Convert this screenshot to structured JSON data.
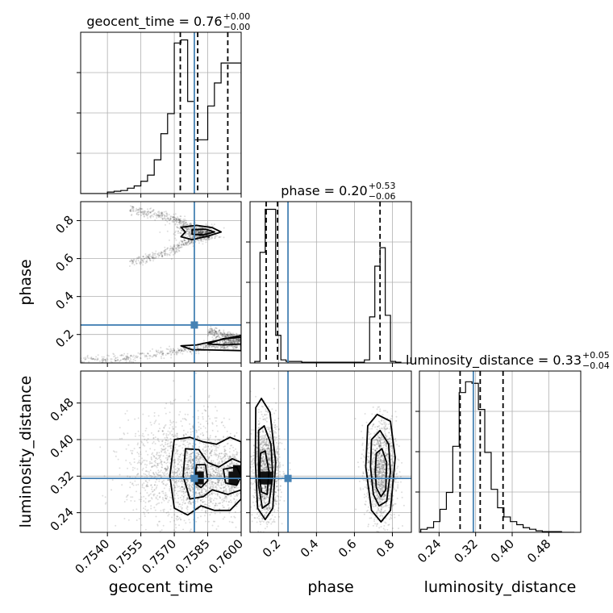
{
  "chart_data": {
    "type": "corner",
    "parameters": [
      "geocent_time",
      "phase",
      "luminosity_distance"
    ],
    "truth": {
      "geocent_time": 0.7579,
      "phase": 0.25,
      "luminosity_distance": 0.315
    },
    "colors": {
      "truth": "#4682b4",
      "lines": "#000000",
      "grid": "#b0b0b0"
    },
    "diagonal": [
      {
        "param": "geocent_time",
        "title_main": "geocent_time = 0.76",
        "title_sup": "+0.00",
        "title_sub": "−0.00",
        "range": [
          0.7528,
          0.76
        ],
        "quantiles": [
          0.75727,
          0.75805,
          0.7594
        ],
        "bin_edges": [
          0.7528,
          0.7531,
          0.7534,
          0.7537,
          0.754,
          0.7543,
          0.7546,
          0.7549,
          0.7552,
          0.7555,
          0.7558,
          0.7561,
          0.7564,
          0.7567,
          0.757,
          0.7573,
          0.7576,
          0.7579,
          0.7582,
          0.7585,
          0.7588,
          0.7591,
          0.7594,
          0.7597,
          0.76
        ],
        "counts": [
          0,
          0,
          0,
          0,
          0.01,
          0.015,
          0.02,
          0.035,
          0.05,
          0.08,
          0.12,
          0.22,
          0.39,
          0.52,
          0.98,
          1.0,
          0.6,
          0.35,
          0.35,
          0.57,
          0.72,
          0.85,
          0.85,
          0.85
        ]
      },
      {
        "param": "phase",
        "title_main": "phase = 0.20",
        "title_sup": "+0.53",
        "title_sub": "−0.06",
        "range": [
          0.05,
          0.9
        ],
        "quantiles": [
          0.135,
          0.195,
          0.735
        ],
        "bin_edges": [
          0.075,
          0.1025,
          0.13,
          0.1575,
          0.185,
          0.2125,
          0.24,
          0.2675,
          0.295,
          0.3225,
          0.35,
          0.3775,
          0.405,
          0.4325,
          0.46,
          0.4875,
          0.515,
          0.5425,
          0.57,
          0.5975,
          0.625,
          0.6525,
          0.68,
          0.7075,
          0.735,
          0.7625,
          0.79,
          0.8175,
          0.845
        ],
        "counts": [
          0.01,
          0.72,
          1.0,
          1.0,
          0.18,
          0.02,
          0.01,
          0.01,
          0.01,
          0.005,
          0.005,
          0.005,
          0.005,
          0.005,
          0.005,
          0.005,
          0.005,
          0.005,
          0.005,
          0.005,
          0.005,
          0.02,
          0.3,
          0.63,
          0.75,
          0.31,
          0.01,
          0.005
        ]
      },
      {
        "param": "luminosity_distance",
        "title_main": "luminosity_distance = 0.33",
        "title_sup": "+0.05",
        "title_sub": "−0.04",
        "range": [
          0.197,
          0.55
        ],
        "quantiles": [
          0.286,
          0.33,
          0.38
        ],
        "bin_edges": [
          0.2,
          0.214,
          0.228,
          0.242,
          0.256,
          0.27,
          0.284,
          0.298,
          0.312,
          0.326,
          0.34,
          0.354,
          0.368,
          0.382,
          0.396,
          0.41,
          0.424,
          0.438,
          0.452,
          0.466,
          0.48,
          0.494,
          0.508,
          0.522,
          0.536
        ],
        "counts": [
          0.02,
          0.03,
          0.07,
          0.15,
          0.26,
          0.56,
          0.91,
          0.98,
          0.97,
          0.8,
          0.52,
          0.28,
          0.16,
          0.1,
          0.07,
          0.05,
          0.03,
          0.02,
          0.01,
          0.005,
          0.005,
          0.005,
          0.0,
          0.0
        ]
      }
    ],
    "axes": {
      "geocent_time": {
        "range": [
          0.7528,
          0.76
        ],
        "ticks": [
          0.754,
          0.7555,
          0.757,
          0.7585,
          0.76
        ],
        "tick_labels": [
          "0.7540",
          "0.7555",
          "0.7570",
          "0.7585",
          "0.7600"
        ]
      },
      "phase": {
        "range": [
          0.05,
          0.9
        ],
        "ticks": [
          0.2,
          0.4,
          0.6,
          0.8
        ],
        "tick_labels": [
          "0.2",
          "0.4",
          "0.6",
          "0.8"
        ]
      },
      "luminosity_distance": {
        "range": [
          0.197,
          0.55
        ],
        "ticks": [
          0.24,
          0.32,
          0.4,
          0.48
        ],
        "tick_labels": [
          "0.24",
          "0.32",
          "0.40",
          "0.48"
        ]
      }
    },
    "xlabels": [
      "geocent_time",
      "phase",
      "luminosity_distance"
    ],
    "ylabels": [
      "",
      "phase",
      "luminosity_distance"
    ],
    "pairs": [
      {
        "x": "geocent_time",
        "y": "phase",
        "clusters": [
          {
            "type": "curve",
            "pts": [
              [
                0.755,
                0.855
              ],
              [
                0.7562,
                0.835
              ],
              [
                0.7572,
                0.8
              ],
              [
                0.758,
                0.74
              ],
              [
                0.7586,
                0.728
              ]
            ],
            "spread": 0.013,
            "n": 420
          },
          {
            "type": "curve",
            "pts": [
              [
                0.755,
                0.58
              ],
              [
                0.7562,
                0.615
              ],
              [
                0.7572,
                0.66
              ],
              [
                0.758,
                0.715
              ],
              [
                0.7586,
                0.722
              ]
            ],
            "spread": 0.012,
            "n": 380
          },
          {
            "type": "blob",
            "cx": 0.75805,
            "cy": 0.735,
            "sx": 0.00045,
            "sy": 0.022,
            "n": 350
          },
          {
            "type": "curve",
            "pts": [
              [
                0.7528,
                0.06
              ],
              [
                0.755,
                0.075
              ],
              [
                0.757,
                0.11
              ],
              [
                0.7585,
                0.135
              ],
              [
                0.76,
                0.15
              ]
            ],
            "spread": 0.012,
            "n": 480
          },
          {
            "type": "curve",
            "pts": [
              [
                0.7585,
                0.22
              ],
              [
                0.7592,
                0.2
              ],
              [
                0.76,
                0.175
              ]
            ],
            "spread": 0.012,
            "n": 180
          },
          {
            "type": "blob",
            "cx": 0.7596,
            "cy": 0.168,
            "sx": 0.00035,
            "sy": 0.018,
            "n": 320
          }
        ],
        "contours": [
          [
            [
              0.7573,
              0.765
            ],
            [
              0.758,
              0.775
            ],
            [
              0.7587,
              0.763
            ],
            [
              0.7591,
              0.74
            ],
            [
              0.7585,
              0.718
            ],
            [
              0.7578,
              0.7
            ],
            [
              0.7573,
              0.715
            ],
            [
              0.7575,
              0.74
            ]
          ],
          [
            [
              0.7578,
              0.752
            ],
            [
              0.7584,
              0.755
            ],
            [
              0.7588,
              0.74
            ],
            [
              0.7583,
              0.725
            ],
            [
              0.7578,
              0.728
            ]
          ],
          [
            [
              0.7573,
              0.14
            ],
            [
              0.758,
              0.145
            ],
            [
              0.7588,
              0.165
            ],
            [
              0.76,
              0.195
            ],
            [
              0.76,
              0.115
            ],
            [
              0.7588,
              0.118
            ],
            [
              0.7578,
              0.12
            ]
          ],
          [
            [
              0.7585,
              0.15
            ],
            [
              0.7592,
              0.178
            ],
            [
              0.76,
              0.185
            ],
            [
              0.76,
              0.15
            ],
            [
              0.7592,
              0.145
            ]
          ]
        ]
      },
      {
        "x": "geocent_time",
        "y": "luminosity_distance",
        "clusters": [
          {
            "type": "blob",
            "cx": 0.7575,
            "cy": 0.33,
            "sx": 0.0013,
            "sy": 0.06,
            "n": 1600
          },
          {
            "type": "blob",
            "cx": 0.7581,
            "cy": 0.32,
            "sx": 0.00045,
            "sy": 0.03,
            "n": 400
          },
          {
            "type": "blob",
            "cx": 0.7596,
            "cy": 0.32,
            "sx": 0.00035,
            "sy": 0.03,
            "n": 400
          }
        ],
        "contours": [
          [
            [
              0.757,
              0.4
            ],
            [
              0.7577,
              0.405
            ],
            [
              0.7583,
              0.395
            ],
            [
              0.7589,
              0.39
            ],
            [
              0.7595,
              0.405
            ],
            [
              0.76,
              0.395
            ],
            [
              0.76,
              0.27
            ],
            [
              0.7595,
              0.245
            ],
            [
              0.7588,
              0.245
            ],
            [
              0.7582,
              0.255
            ],
            [
              0.7576,
              0.235
            ],
            [
              0.757,
              0.25
            ],
            [
              0.7568,
              0.32
            ]
          ],
          [
            [
              0.7575,
              0.38
            ],
            [
              0.7581,
              0.378
            ],
            [
              0.7585,
              0.35
            ],
            [
              0.759,
              0.34
            ],
            [
              0.7596,
              0.358
            ],
            [
              0.76,
              0.35
            ],
            [
              0.76,
              0.29
            ],
            [
              0.7594,
              0.28
            ],
            [
              0.7587,
              0.29
            ],
            [
              0.7583,
              0.275
            ],
            [
              0.7577,
              0.27
            ],
            [
              0.7574,
              0.32
            ]
          ],
          [
            [
              0.758,
              0.345
            ],
            [
              0.7584,
              0.345
            ],
            [
              0.7585,
              0.31
            ],
            [
              0.7582,
              0.295
            ],
            [
              0.7579,
              0.305
            ]
          ],
          [
            [
              0.7592,
              0.335
            ],
            [
              0.7598,
              0.34
            ],
            [
              0.76,
              0.32
            ],
            [
              0.7598,
              0.3
            ],
            [
              0.7593,
              0.305
            ]
          ]
        ],
        "dark_cells": [
          [
            0.75811,
            0.316
          ],
          [
            0.75965,
            0.316
          ],
          [
            0.75985,
            0.33
          ]
        ]
      },
      {
        "x": "phase",
        "y": "luminosity_distance",
        "clusters": [
          {
            "type": "blob",
            "cx": 0.135,
            "cy": 0.33,
            "sx": 0.035,
            "sy": 0.055,
            "n": 1300
          },
          {
            "type": "blob",
            "cx": 0.74,
            "cy": 0.33,
            "sx": 0.04,
            "sy": 0.055,
            "n": 1300
          }
        ],
        "contours": [
          [
            [
              0.08,
              0.47
            ],
            [
              0.11,
              0.49
            ],
            [
              0.155,
              0.46
            ],
            [
              0.185,
              0.35
            ],
            [
              0.17,
              0.25
            ],
            [
              0.13,
              0.225
            ],
            [
              0.09,
              0.25
            ],
            [
              0.078,
              0.35
            ]
          ],
          [
            [
              0.095,
              0.42
            ],
            [
              0.125,
              0.43
            ],
            [
              0.16,
              0.39
            ],
            [
              0.17,
              0.32
            ],
            [
              0.15,
              0.26
            ],
            [
              0.115,
              0.25
            ],
            [
              0.095,
              0.3
            ]
          ],
          [
            [
              0.105,
              0.37
            ],
            [
              0.13,
              0.375
            ],
            [
              0.15,
              0.33
            ],
            [
              0.14,
              0.28
            ],
            [
              0.11,
              0.285
            ],
            [
              0.1,
              0.32
            ]
          ],
          [
            [
              0.67,
              0.43
            ],
            [
              0.72,
              0.455
            ],
            [
              0.79,
              0.44
            ],
            [
              0.815,
              0.36
            ],
            [
              0.79,
              0.245
            ],
            [
              0.74,
              0.22
            ],
            [
              0.69,
              0.245
            ],
            [
              0.66,
              0.34
            ]
          ],
          [
            [
              0.69,
              0.4
            ],
            [
              0.735,
              0.42
            ],
            [
              0.78,
              0.39
            ],
            [
              0.79,
              0.33
            ],
            [
              0.77,
              0.265
            ],
            [
              0.73,
              0.255
            ],
            [
              0.7,
              0.28
            ],
            [
              0.685,
              0.34
            ]
          ],
          [
            [
              0.715,
              0.37
            ],
            [
              0.745,
              0.38
            ],
            [
              0.77,
              0.35
            ],
            [
              0.765,
              0.29
            ],
            [
              0.74,
              0.275
            ],
            [
              0.715,
              0.295
            ],
            [
              0.71,
              0.33
            ]
          ]
        ],
        "dark_cells": [
          [
            0.127,
            0.316
          ],
          [
            0.14,
            0.316
          ]
        ]
      }
    ]
  }
}
